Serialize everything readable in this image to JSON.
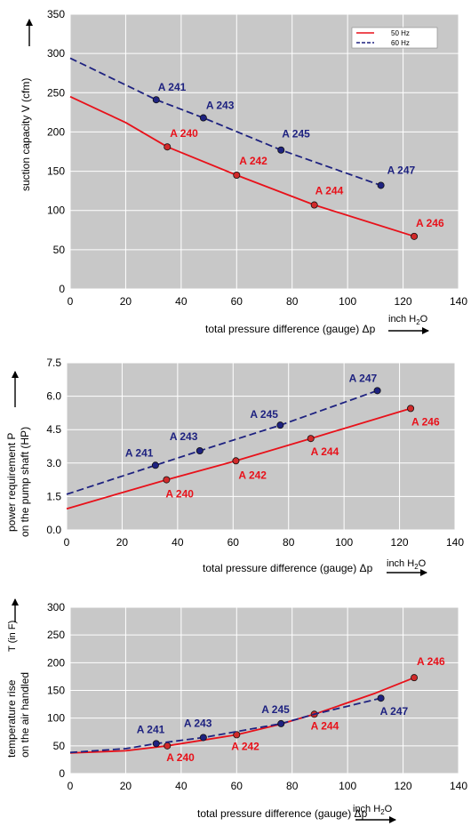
{
  "colors": {
    "plot_bg": "#c8c8c8",
    "grid": "#ffffff",
    "hz50": "#e8111a",
    "hz60": "#1e2280",
    "marker_50_fill": "#d12a2a",
    "marker_60_fill": "#1e2280"
  },
  "chart_data": [
    {
      "type": "line",
      "ylabel": "suction capacity V (cfm)",
      "xlabel": "total pressure difference (gauge)  Δp",
      "unit_label": "inch H2O",
      "xlim": [
        0,
        140
      ],
      "ylim": [
        0,
        350
      ],
      "xticks": [
        0,
        20,
        40,
        60,
        80,
        100,
        120,
        140
      ],
      "yticks": [
        0,
        50,
        100,
        150,
        200,
        250,
        300,
        350
      ],
      "grid": true,
      "legend": {
        "position": "top-right",
        "entries": [
          "50 Hz",
          "60 Hz"
        ]
      },
      "series": [
        {
          "name": "50 Hz",
          "style": "solid",
          "line": [
            [
              0,
              245
            ],
            [
              20,
              212
            ],
            [
              35,
              181
            ],
            [
              60,
              145
            ],
            [
              88,
              107
            ],
            [
              124,
              67
            ]
          ],
          "points": [
            {
              "label": "A 240",
              "x": 35,
              "y": 181
            },
            {
              "label": "A 242",
              "x": 60,
              "y": 145
            },
            {
              "label": "A 244",
              "x": 88,
              "y": 107
            },
            {
              "label": "A 246",
              "x": 124,
              "y": 67
            }
          ]
        },
        {
          "name": "60 Hz",
          "style": "dashed",
          "line": [
            [
              0,
              294
            ],
            [
              31,
              241
            ],
            [
              48,
              218
            ],
            [
              76,
              177
            ],
            [
              112,
              132
            ]
          ],
          "points": [
            {
              "label": "A 241",
              "x": 31,
              "y": 241
            },
            {
              "label": "A 243",
              "x": 48,
              "y": 218
            },
            {
              "label": "A 245",
              "x": 76,
              "y": 177
            },
            {
              "label": "A 247",
              "x": 112,
              "y": 132
            }
          ]
        }
      ]
    },
    {
      "type": "line",
      "ylabel": "power requirement P on the pump shaft (HP)",
      "xlabel": "total pressure difference (gauge)  Δp",
      "unit_label": "inch H2O",
      "xlim": [
        0,
        140
      ],
      "ylim": [
        0,
        7.5
      ],
      "xticks": [
        0,
        20,
        40,
        60,
        80,
        100,
        120,
        140
      ],
      "yticks": [
        "0.0",
        "1.5",
        "3.0",
        "4.5",
        "6.0",
        "7.5"
      ],
      "grid": true,
      "series": [
        {
          "name": "50 Hz",
          "style": "solid",
          "line": [
            [
              0,
              0.95
            ],
            [
              36,
              2.25
            ],
            [
              61,
              3.1
            ],
            [
              88,
              4.1
            ],
            [
              124,
              5.45
            ]
          ],
          "points": [
            {
              "label": "A 240",
              "x": 36,
              "y": 2.25
            },
            {
              "label": "A 242",
              "x": 61,
              "y": 3.1
            },
            {
              "label": "A 244",
              "x": 88,
              "y": 4.1
            },
            {
              "label": "A 246",
              "x": 124,
              "y": 5.45
            }
          ]
        },
        {
          "name": "60 Hz",
          "style": "dashed",
          "line": [
            [
              0,
              1.6
            ],
            [
              32,
              2.9
            ],
            [
              48,
              3.55
            ],
            [
              77,
              4.7
            ],
            [
              112,
              6.25
            ]
          ],
          "points": [
            {
              "label": "A 241",
              "x": 32,
              "y": 2.9
            },
            {
              "label": "A 243",
              "x": 48,
              "y": 3.55
            },
            {
              "label": "A 245",
              "x": 77,
              "y": 4.7
            },
            {
              "label": "A 247",
              "x": 112,
              "y": 6.25
            }
          ]
        }
      ]
    },
    {
      "type": "line",
      "ylabel": "temperature rise on the air handled",
      "ylabel_extra": "T    (in F)",
      "xlabel": "total pressure difference (gauge)  Δp",
      "unit_label": "inch H2O",
      "xlim": [
        0,
        140
      ],
      "ylim": [
        0,
        300
      ],
      "xticks": [
        0,
        20,
        40,
        60,
        80,
        100,
        120,
        140
      ],
      "yticks": [
        0,
        50,
        100,
        150,
        200,
        250,
        300
      ],
      "grid": true,
      "series": [
        {
          "name": "50 Hz",
          "style": "solid",
          "line": [
            [
              0,
              37
            ],
            [
              20,
              41
            ],
            [
              35,
              50
            ],
            [
              60,
              70
            ],
            [
              75,
              88
            ],
            [
              88,
              107
            ],
            [
              110,
              145
            ],
            [
              124,
              173
            ]
          ],
          "points": [
            {
              "label": "A 240",
              "x": 35,
              "y": 50
            },
            {
              "label": "A 242",
              "x": 60,
              "y": 70
            },
            {
              "label": "A 244",
              "x": 88,
              "y": 107
            },
            {
              "label": "A 246",
              "x": 124,
              "y": 173
            }
          ]
        },
        {
          "name": "60 Hz",
          "style": "dashed",
          "line": [
            [
              0,
              38
            ],
            [
              20,
              45
            ],
            [
              31,
              54
            ],
            [
              48,
              65
            ],
            [
              76,
              90
            ],
            [
              88,
              107
            ],
            [
              112,
              136
            ]
          ],
          "points": [
            {
              "label": "A 241",
              "x": 31,
              "y": 54
            },
            {
              "label": "A 243",
              "x": 48,
              "y": 65
            },
            {
              "label": "A 245",
              "x": 76,
              "y": 90
            },
            {
              "label": "A 247",
              "x": 112,
              "y": 136
            }
          ]
        }
      ]
    }
  ]
}
